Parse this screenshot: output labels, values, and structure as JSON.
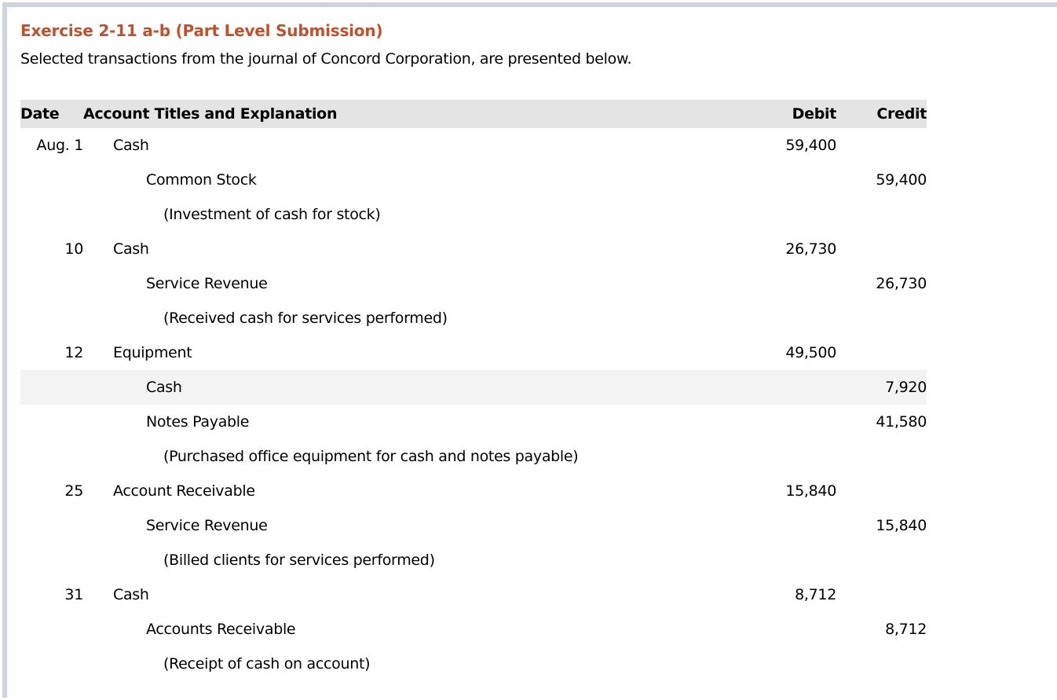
{
  "page": {
    "title": "Exercise 2-11 a-b (Part Level Submission)",
    "subtitle": "Selected transactions from the journal of Concord Corporation, are presented below."
  },
  "colors": {
    "title": "#bf512b",
    "frame_border": "#ccd5df",
    "table_header_bg": "#e4e4e4",
    "highlight_row_bg": "#f3f3f3"
  },
  "journal_table": {
    "columns": {
      "date": "Date",
      "account": "Account Titles and Explanation",
      "debit": "Debit",
      "credit": "Credit"
    },
    "rows": [
      {
        "date": "Aug. 1",
        "account": "Cash",
        "debit": "59,400",
        "credit": "",
        "indent": 0,
        "highlighted": false
      },
      {
        "date": "",
        "account": "Common Stock",
        "debit": "",
        "credit": "59,400",
        "indent": 1,
        "highlighted": false
      },
      {
        "date": "",
        "account": "(Investment of cash for stock)",
        "debit": "",
        "credit": "",
        "indent": 2,
        "highlighted": false
      },
      {
        "date": "10",
        "account": "Cash",
        "debit": "26,730",
        "credit": "",
        "indent": 0,
        "highlighted": false
      },
      {
        "date": "",
        "account": "Service Revenue",
        "debit": "",
        "credit": "26,730",
        "indent": 1,
        "highlighted": false
      },
      {
        "date": "",
        "account": "(Received cash for services performed)",
        "debit": "",
        "credit": "",
        "indent": 2,
        "highlighted": false
      },
      {
        "date": "12",
        "account": "Equipment",
        "debit": "49,500",
        "credit": "",
        "indent": 0,
        "highlighted": false
      },
      {
        "date": "",
        "account": "Cash",
        "debit": "",
        "credit": "7,920",
        "indent": 1,
        "highlighted": true
      },
      {
        "date": "",
        "account": "Notes Payable",
        "debit": "",
        "credit": "41,580",
        "indent": 1,
        "highlighted": false
      },
      {
        "date": "",
        "account": "(Purchased office equipment for cash and notes payable)",
        "debit": "",
        "credit": "",
        "indent": 2,
        "highlighted": false
      },
      {
        "date": "25",
        "account": "Account Receivable",
        "debit": "15,840",
        "credit": "",
        "indent": 0,
        "highlighted": false
      },
      {
        "date": "",
        "account": "Service Revenue",
        "debit": "",
        "credit": "15,840",
        "indent": 1,
        "highlighted": false
      },
      {
        "date": "",
        "account": "(Billed clients for services performed)",
        "debit": "",
        "credit": "",
        "indent": 2,
        "highlighted": false
      },
      {
        "date": "31",
        "account": "Cash",
        "debit": "8,712",
        "credit": "",
        "indent": 0,
        "highlighted": false
      },
      {
        "date": "",
        "account": "Accounts Receivable",
        "debit": "",
        "credit": "8,712",
        "indent": 1,
        "highlighted": false
      },
      {
        "date": "",
        "account": "(Receipt of cash on account)",
        "debit": "",
        "credit": "",
        "indent": 2,
        "highlighted": false
      }
    ]
  }
}
